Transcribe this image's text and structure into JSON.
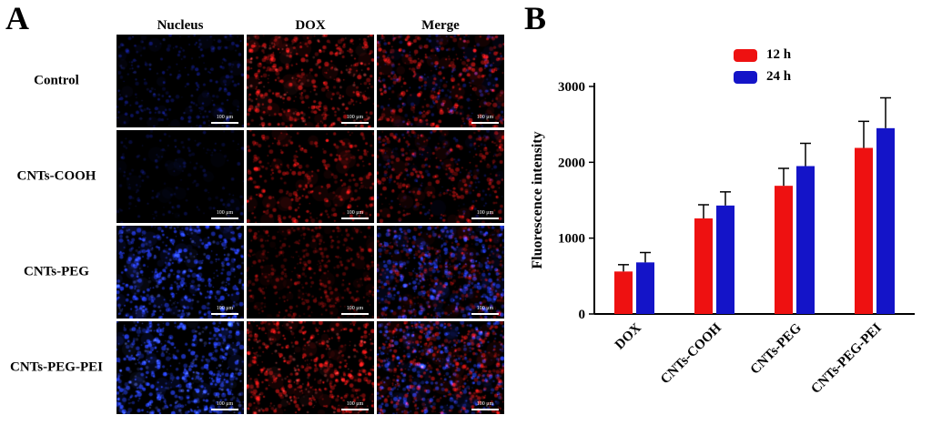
{
  "figure": {
    "panel_a_label": "A",
    "panel_b_label": "B"
  },
  "panel_a": {
    "column_headers": [
      "Nucleus",
      "DOX",
      "Merge"
    ],
    "row_labels": [
      "Control",
      "CNTs-COOH",
      "CNTs-PEG",
      "CNTs-PEG-PEI"
    ],
    "scale_bar_label": "100 μm",
    "channel_colors": {
      "nucleus_blue": "#2437e8",
      "dox_red": "#e01414"
    },
    "cells": [
      {
        "row": "Control",
        "channel": "Nucleus",
        "layers": [
          {
            "color": "#1b2bd8",
            "count": 210,
            "r": 1.6,
            "alpha": 0.5
          },
          {
            "color": "#3c50ff",
            "count": 60,
            "r": 1.1,
            "alpha": 0.35
          }
        ]
      },
      {
        "row": "Control",
        "channel": "DOX",
        "layers": [
          {
            "color": "#e01717",
            "count": 330,
            "r": 2.0,
            "alpha": 0.75
          },
          {
            "color": "#ff5a5a",
            "count": 80,
            "r": 1.2,
            "alpha": 0.5
          }
        ]
      },
      {
        "row": "Control",
        "channel": "Merge",
        "layers": [
          {
            "color": "#e01717",
            "count": 330,
            "r": 2.0,
            "alpha": 0.7
          },
          {
            "color": "#2b3bff",
            "count": 170,
            "r": 1.5,
            "alpha": 0.45
          }
        ]
      },
      {
        "row": "CNTs-COOH",
        "channel": "Nucleus",
        "layers": [
          {
            "color": "#15219c",
            "count": 170,
            "r": 1.5,
            "alpha": 0.45
          }
        ]
      },
      {
        "row": "CNTs-COOH",
        "channel": "DOX",
        "layers": [
          {
            "color": "#d81414",
            "count": 290,
            "r": 1.9,
            "alpha": 0.7
          }
        ]
      },
      {
        "row": "CNTs-COOH",
        "channel": "Merge",
        "layers": [
          {
            "color": "#d81414",
            "count": 290,
            "r": 1.9,
            "alpha": 0.65
          },
          {
            "color": "#2230e0",
            "count": 140,
            "r": 1.4,
            "alpha": 0.4
          }
        ]
      },
      {
        "row": "CNTs-PEG",
        "channel": "Nucleus",
        "layers": [
          {
            "color": "#2640ff",
            "count": 420,
            "r": 2.1,
            "alpha": 0.8
          },
          {
            "color": "#5d74ff",
            "count": 100,
            "r": 1.3,
            "alpha": 0.5
          }
        ]
      },
      {
        "row": "CNTs-PEG",
        "channel": "DOX",
        "layers": [
          {
            "color": "#b01010",
            "count": 380,
            "r": 1.7,
            "alpha": 0.6
          }
        ]
      },
      {
        "row": "CNTs-PEG",
        "channel": "Merge",
        "layers": [
          {
            "color": "#b01010",
            "count": 380,
            "r": 1.7,
            "alpha": 0.55
          },
          {
            "color": "#2640ff",
            "count": 420,
            "r": 2.0,
            "alpha": 0.7
          }
        ]
      },
      {
        "row": "CNTs-PEG-PEI",
        "channel": "Nucleus",
        "layers": [
          {
            "color": "#2945ff",
            "count": 430,
            "r": 2.1,
            "alpha": 0.85
          },
          {
            "color": "#6b80ff",
            "count": 110,
            "r": 1.3,
            "alpha": 0.5
          }
        ]
      },
      {
        "row": "CNTs-PEG-PEI",
        "channel": "DOX",
        "layers": [
          {
            "color": "#e01616",
            "count": 420,
            "r": 1.9,
            "alpha": 0.75
          },
          {
            "color": "#ff6a6a",
            "count": 90,
            "r": 1.1,
            "alpha": 0.5
          }
        ]
      },
      {
        "row": "CNTs-PEG-PEI",
        "channel": "Merge",
        "layers": [
          {
            "color": "#e01616",
            "count": 400,
            "r": 1.8,
            "alpha": 0.65
          },
          {
            "color": "#2945ff",
            "count": 380,
            "r": 1.9,
            "alpha": 0.65
          }
        ]
      }
    ]
  },
  "chart_data": {
    "type": "bar",
    "title": "",
    "categories": [
      "DOX",
      "CNTs-COOH",
      "CNTs-PEG",
      "CNTs-PEG-PEI"
    ],
    "series": [
      {
        "name": "12 h",
        "color": "#ee1111",
        "values": [
          560,
          1260,
          1690,
          2190
        ],
        "errors": [
          90,
          180,
          230,
          350
        ]
      },
      {
        "name": "24 h",
        "color": "#1414c8",
        "values": [
          680,
          1430,
          1950,
          2450
        ],
        "errors": [
          130,
          180,
          300,
          400
        ]
      }
    ],
    "xlabel": "",
    "ylabel": "Fluorescence intensity",
    "ylim": [
      0,
      3000
    ],
    "yticks": [
      0,
      1000,
      2000,
      3000
    ],
    "legend_position": "top-right",
    "grid": false
  }
}
